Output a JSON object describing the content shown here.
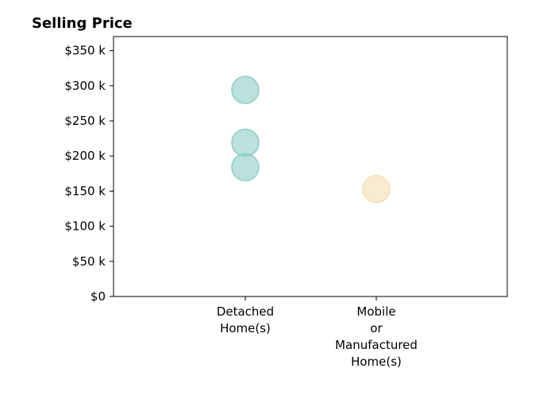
{
  "chart_data": {
    "type": "scatter",
    "title": "Selling Price",
    "xlabel": "",
    "ylabel": "",
    "categories": [
      [
        "Detached",
        "Home(s)"
      ],
      [
        "Mobile",
        "or",
        "Manufactured",
        "Home(s)"
      ]
    ],
    "ylim": [
      0,
      370000
    ],
    "yticks": [
      {
        "value": 0,
        "label": "$0"
      },
      {
        "value": 50000,
        "label": "$50 k"
      },
      {
        "value": 100000,
        "label": "$100 k"
      },
      {
        "value": 150000,
        "label": "$150 k"
      },
      {
        "value": 200000,
        "label": "$200 k"
      },
      {
        "value": 250000,
        "label": "$250 k"
      },
      {
        "value": 300000,
        "label": "$300 k"
      },
      {
        "value": 350000,
        "label": "$350 k"
      }
    ],
    "grid": false,
    "legend": "none",
    "points": [
      {
        "category": 0,
        "y": 294000,
        "color": "#8ecdc5"
      },
      {
        "category": 0,
        "y": 219000,
        "color": "#8ecdc5"
      },
      {
        "category": 0,
        "y": 184000,
        "color": "#8ecdc5"
      },
      {
        "category": 1,
        "y": 153000,
        "color": "#f5deb0"
      }
    ]
  }
}
